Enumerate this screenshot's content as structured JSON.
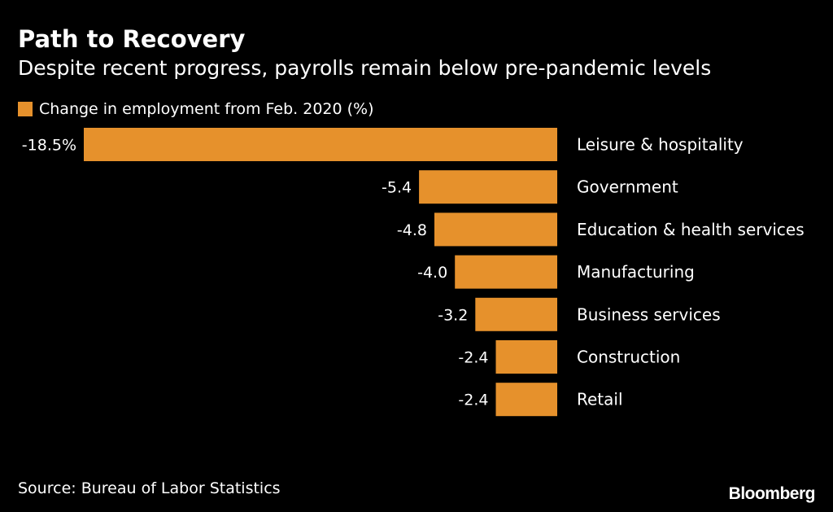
{
  "header": {
    "title": "Path to Recovery",
    "subtitle": "Despite recent progress, payrolls remain below pre-pandemic levels"
  },
  "legend": {
    "label": "Change in employment from Feb. 2020 (%)"
  },
  "footer": {
    "source": "Source: Bureau of Labor Statistics",
    "brand": "Bloomberg"
  },
  "colors": {
    "background": "#000000",
    "bar": "#e6912c",
    "text": "#ffffff"
  },
  "chart_data": {
    "type": "bar",
    "orientation": "horizontal",
    "title": "Path to Recovery",
    "subtitle": "Despite recent progress, payrolls remain below pre-pandemic levels",
    "categories": [
      "Leisure & hospitality",
      "Government",
      "Education & health services",
      "Manufacturing",
      "Business services",
      "Construction",
      "Retail"
    ],
    "series": [
      {
        "name": "Change in employment from Feb. 2020 (%)",
        "values": [
          -18.5,
          -5.4,
          -4.8,
          -4.0,
          -3.2,
          -2.4,
          -2.4
        ]
      }
    ],
    "data_labels": [
      "-18.5%",
      "-5.4",
      "-4.8",
      "-4.0",
      "-3.2",
      "-2.4",
      "-2.4"
    ],
    "xlim": [
      -18.5,
      0
    ],
    "grid": false,
    "legend_position": "top-left"
  }
}
